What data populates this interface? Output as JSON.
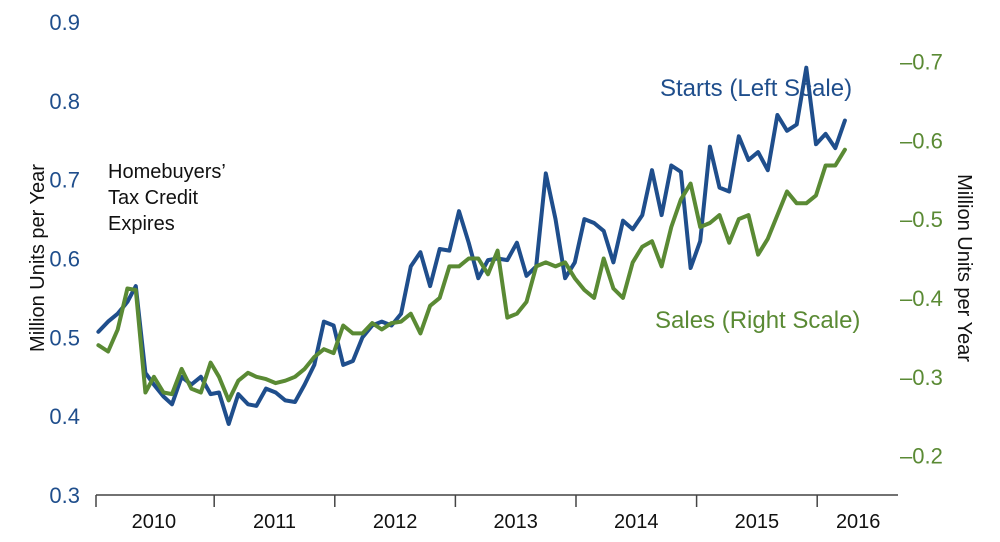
{
  "chart_data": {
    "type": "line",
    "y_left": {
      "label": "Million Units  per Year",
      "range": [
        0.3,
        0.9
      ],
      "ticks": [
        "0.9",
        "0.8",
        "0.7",
        "0.6",
        "0.5",
        "0.4",
        "0.3"
      ],
      "tick_values": [
        0.9,
        0.8,
        0.7,
        0.6,
        0.5,
        0.4,
        0.3
      ],
      "color": "#1f4e8c"
    },
    "y_right": {
      "label": "Million Units  per Year",
      "range": [
        0.15,
        0.75
      ],
      "ticks": [
        "–0.7",
        "–0.6",
        "–0.5",
        "–0.4",
        "–0.3",
        "–0.2"
      ],
      "tick_values": [
        0.7,
        0.6,
        0.5,
        0.4,
        0.3,
        0.2
      ],
      "color": "#5a8a34"
    },
    "x_axis": {
      "range": [
        2009.6,
        2016.25
      ],
      "labels": [
        {
          "text": "2010",
          "at": 2010.08
        },
        {
          "text": "2011",
          "at": 2011.08
        },
        {
          "text": "2012",
          "at": 2012.08
        },
        {
          "text": "2013",
          "at": 2013.08
        },
        {
          "text": "2014",
          "at": 2014.08
        },
        {
          "text": "2015",
          "at": 2015.08
        },
        {
          "text": "2016",
          "at": 2015.92
        }
      ],
      "ticks": [
        2009.6,
        2010.58,
        2011.58,
        2012.58,
        2013.58,
        2014.58,
        2015.58
      ]
    },
    "annotations": {
      "tax_credit": [
        "Homebuyers’",
        "Tax Credit",
        "Expires"
      ],
      "starts": "Starts (Left Scale)",
      "sales": "Sales (Right Scale)"
    },
    "series": [
      {
        "name": "Starts (Left Scale)",
        "axis": "left",
        "color": "#1f4e8c",
        "points": [
          [
            2009.62,
            0.507
          ],
          [
            2009.7,
            0.52
          ],
          [
            2009.78,
            0.53
          ],
          [
            2009.86,
            0.545
          ],
          [
            2009.93,
            0.565
          ],
          [
            2010.01,
            0.455
          ],
          [
            2010.08,
            0.44
          ],
          [
            2010.16,
            0.425
          ],
          [
            2010.23,
            0.415
          ],
          [
            2010.31,
            0.45
          ],
          [
            2010.39,
            0.44
          ],
          [
            2010.47,
            0.45
          ],
          [
            2010.55,
            0.428
          ],
          [
            2010.62,
            0.43
          ],
          [
            2010.7,
            0.39
          ],
          [
            2010.78,
            0.428
          ],
          [
            2010.86,
            0.415
          ],
          [
            2010.93,
            0.413
          ],
          [
            2011.01,
            0.435
          ],
          [
            2011.09,
            0.43
          ],
          [
            2011.17,
            0.42
          ],
          [
            2011.25,
            0.418
          ],
          [
            2011.33,
            0.44
          ],
          [
            2011.41,
            0.465
          ],
          [
            2011.49,
            0.52
          ],
          [
            2011.57,
            0.515
          ],
          [
            2011.65,
            0.465
          ],
          [
            2011.73,
            0.47
          ],
          [
            2011.81,
            0.5
          ],
          [
            2011.89,
            0.515
          ],
          [
            2011.97,
            0.52
          ],
          [
            2012.05,
            0.515
          ],
          [
            2012.13,
            0.53
          ],
          [
            2012.21,
            0.59
          ],
          [
            2012.29,
            0.608
          ],
          [
            2012.37,
            0.565
          ],
          [
            2012.45,
            0.612
          ],
          [
            2012.53,
            0.61
          ],
          [
            2012.61,
            0.66
          ],
          [
            2012.69,
            0.62
          ],
          [
            2012.77,
            0.575
          ],
          [
            2012.85,
            0.598
          ],
          [
            2012.93,
            0.6
          ],
          [
            2013.01,
            0.598
          ],
          [
            2013.09,
            0.62
          ],
          [
            2013.17,
            0.578
          ],
          [
            2013.25,
            0.59
          ],
          [
            2013.33,
            0.708
          ],
          [
            2013.41,
            0.65
          ],
          [
            2013.49,
            0.575
          ],
          [
            2013.57,
            0.595
          ],
          [
            2013.65,
            0.65
          ],
          [
            2013.73,
            0.645
          ],
          [
            2013.81,
            0.635
          ],
          [
            2013.89,
            0.595
          ],
          [
            2013.97,
            0.648
          ],
          [
            2014.05,
            0.637
          ],
          [
            2014.13,
            0.655
          ],
          [
            2014.21,
            0.712
          ],
          [
            2014.29,
            0.655
          ],
          [
            2014.37,
            0.718
          ],
          [
            2014.45,
            0.71
          ],
          [
            2014.53,
            0.588
          ],
          [
            2014.61,
            0.622
          ],
          [
            2014.69,
            0.742
          ],
          [
            2014.77,
            0.69
          ],
          [
            2014.85,
            0.685
          ],
          [
            2014.93,
            0.755
          ],
          [
            2015.01,
            0.725
          ],
          [
            2015.09,
            0.735
          ],
          [
            2015.17,
            0.712
          ],
          [
            2015.25,
            0.782
          ],
          [
            2015.33,
            0.762
          ],
          [
            2015.41,
            0.77
          ],
          [
            2015.49,
            0.842
          ],
          [
            2015.57,
            0.745
          ],
          [
            2015.65,
            0.758
          ],
          [
            2015.73,
            0.74
          ],
          [
            2015.81,
            0.775
          ]
        ]
      },
      {
        "name": "Sales (Right Scale)",
        "axis": "right",
        "color": "#5a8a34",
        "points": [
          [
            2009.62,
            0.34
          ],
          [
            2009.7,
            0.332
          ],
          [
            2009.78,
            0.36
          ],
          [
            2009.86,
            0.412
          ],
          [
            2009.93,
            0.41
          ],
          [
            2010.01,
            0.28
          ],
          [
            2010.08,
            0.3
          ],
          [
            2010.16,
            0.28
          ],
          [
            2010.23,
            0.278
          ],
          [
            2010.31,
            0.31
          ],
          [
            2010.39,
            0.285
          ],
          [
            2010.47,
            0.28
          ],
          [
            2010.55,
            0.318
          ],
          [
            2010.62,
            0.3
          ],
          [
            2010.7,
            0.27
          ],
          [
            2010.78,
            0.295
          ],
          [
            2010.86,
            0.305
          ],
          [
            2010.93,
            0.3
          ],
          [
            2011.01,
            0.297
          ],
          [
            2011.09,
            0.292
          ],
          [
            2011.17,
            0.295
          ],
          [
            2011.25,
            0.3
          ],
          [
            2011.33,
            0.31
          ],
          [
            2011.41,
            0.325
          ],
          [
            2011.49,
            0.335
          ],
          [
            2011.57,
            0.33
          ],
          [
            2011.65,
            0.365
          ],
          [
            2011.73,
            0.355
          ],
          [
            2011.81,
            0.355
          ],
          [
            2011.89,
            0.368
          ],
          [
            2011.97,
            0.36
          ],
          [
            2012.05,
            0.368
          ],
          [
            2012.13,
            0.37
          ],
          [
            2012.21,
            0.38
          ],
          [
            2012.29,
            0.355
          ],
          [
            2012.37,
            0.39
          ],
          [
            2012.45,
            0.4
          ],
          [
            2012.53,
            0.44
          ],
          [
            2012.61,
            0.44
          ],
          [
            2012.69,
            0.45
          ],
          [
            2012.77,
            0.45
          ],
          [
            2012.85,
            0.43
          ],
          [
            2012.93,
            0.46
          ],
          [
            2013.01,
            0.375
          ],
          [
            2013.09,
            0.38
          ],
          [
            2013.17,
            0.395
          ],
          [
            2013.25,
            0.44
          ],
          [
            2013.33,
            0.445
          ],
          [
            2013.41,
            0.44
          ],
          [
            2013.49,
            0.445
          ],
          [
            2013.57,
            0.425
          ],
          [
            2013.65,
            0.41
          ],
          [
            2013.73,
            0.4
          ],
          [
            2013.81,
            0.45
          ],
          [
            2013.89,
            0.412
          ],
          [
            2013.97,
            0.4
          ],
          [
            2014.05,
            0.445
          ],
          [
            2014.13,
            0.465
          ],
          [
            2014.21,
            0.472
          ],
          [
            2014.29,
            0.44
          ],
          [
            2014.37,
            0.49
          ],
          [
            2014.45,
            0.525
          ],
          [
            2014.53,
            0.545
          ],
          [
            2014.61,
            0.49
          ],
          [
            2014.69,
            0.495
          ],
          [
            2014.77,
            0.505
          ],
          [
            2014.85,
            0.47
          ],
          [
            2014.93,
            0.5
          ],
          [
            2015.01,
            0.505
          ],
          [
            2015.09,
            0.455
          ],
          [
            2015.17,
            0.475
          ],
          [
            2015.25,
            0.505
          ],
          [
            2015.33,
            0.535
          ],
          [
            2015.41,
            0.52
          ],
          [
            2015.49,
            0.52
          ],
          [
            2015.57,
            0.53
          ],
          [
            2015.65,
            0.568
          ],
          [
            2015.73,
            0.568
          ],
          [
            2015.81,
            0.588
          ]
        ]
      }
    ]
  }
}
